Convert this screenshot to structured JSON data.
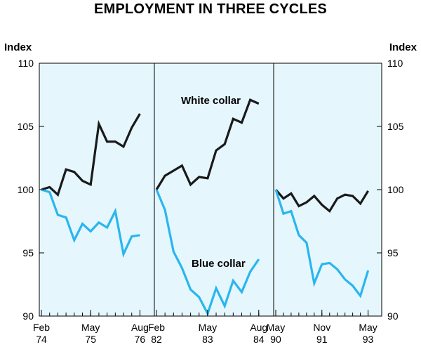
{
  "chart_data": {
    "type": "line",
    "title": "EMPLOYMENT IN THREE CYCLES",
    "ylabel_left": "Index",
    "ylabel_right": "Index",
    "ylim": [
      90,
      110
    ],
    "yticks": [
      90,
      95,
      100,
      105,
      110
    ],
    "grid": false,
    "colors": {
      "white_collar": "#1a1a1a",
      "blue_collar": "#29b6ef",
      "background": "#e5f6fd"
    },
    "panels": [
      {
        "x_ticks": [
          {
            "top": "Feb",
            "bottom": "74"
          },
          {
            "top": "May",
            "bottom": "75"
          },
          {
            "top": "Aug",
            "bottom": "76"
          }
        ],
        "series": [
          {
            "key": "white_collar",
            "values": [
              100.0,
              100.2,
              99.6,
              101.6,
              101.4,
              100.7,
              100.4,
              105.2,
              103.8,
              103.8,
              103.4,
              104.9,
              106.0
            ]
          },
          {
            "key": "blue_collar",
            "values": [
              100.0,
              99.8,
              98.0,
              97.8,
              96.0,
              97.3,
              96.7,
              97.4,
              97.0,
              98.3,
              94.9,
              96.3,
              96.4
            ]
          }
        ]
      },
      {
        "x_ticks": [
          {
            "top": "Feb",
            "bottom": "82"
          },
          {
            "top": "May",
            "bottom": "83"
          },
          {
            "top": "Aug",
            "bottom": "84"
          }
        ],
        "series": [
          {
            "key": "white_collar",
            "values": [
              100.0,
              101.1,
              101.5,
              101.9,
              100.4,
              101.0,
              100.9,
              103.1,
              103.6,
              105.6,
              105.3,
              107.1,
              106.8
            ]
          },
          {
            "key": "blue_collar",
            "values": [
              100.0,
              98.4,
              95.1,
              93.8,
              92.1,
              91.5,
              90.2,
              92.2,
              90.8,
              92.8,
              91.9,
              93.5,
              94.5
            ]
          }
        ]
      },
      {
        "x_ticks": [
          {
            "top": "May",
            "bottom": "90"
          },
          {
            "top": "Nov",
            "bottom": "91"
          },
          {
            "top": "May",
            "bottom": "93"
          }
        ],
        "series": [
          {
            "key": "white_collar",
            "values": [
              100.0,
              99.3,
              99.7,
              98.7,
              99.0,
              99.5,
              98.8,
              98.3,
              99.3,
              99.6,
              99.5,
              98.9,
              99.9
            ]
          },
          {
            "key": "blue_collar",
            "values": [
              100.0,
              98.1,
              98.3,
              96.4,
              95.8,
              92.6,
              94.1,
              94.2,
              93.7,
              92.9,
              92.4,
              91.6,
              93.6
            ]
          }
        ]
      }
    ],
    "annotations": [
      {
        "text": "White collar",
        "panel": 1
      },
      {
        "text": "Blue collar",
        "panel": 1
      }
    ]
  }
}
